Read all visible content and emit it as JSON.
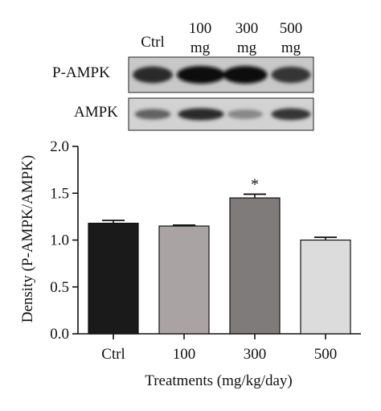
{
  "blot": {
    "lane_headers": [
      {
        "line1": "Ctrl",
        "line2": ""
      },
      {
        "line1": "100",
        "line2": "mg"
      },
      {
        "line1": "300",
        "line2": "mg"
      },
      {
        "line1": "500",
        "line2": "mg"
      }
    ],
    "rows": [
      {
        "label": "P-AMPK",
        "band_intensity": [
          0.85,
          1.0,
          1.0,
          0.8
        ]
      },
      {
        "label": "AMPK",
        "band_intensity": [
          0.55,
          0.85,
          0.35,
          0.8
        ]
      }
    ]
  },
  "chart_data": {
    "type": "bar",
    "categories": [
      "Ctrl",
      "100",
      "300",
      "500"
    ],
    "values": [
      1.18,
      1.15,
      1.45,
      1.0
    ],
    "errors": [
      0.03,
      0.01,
      0.04,
      0.03
    ],
    "bar_colors": [
      "#1a1a1a",
      "#a9a3a3",
      "#7f7b7b",
      "#dcdcdc"
    ],
    "annotations": [
      "",
      "",
      "*",
      ""
    ],
    "xlabel": "Treatments (mg/kg/day)",
    "ylabel": "Density (P-AMPK/AMPK)",
    "ylim": [
      0,
      2.0
    ],
    "yticks": [
      "0.0",
      "0.5",
      "1.0",
      "1.5",
      "2.0"
    ],
    "grid": false
  }
}
